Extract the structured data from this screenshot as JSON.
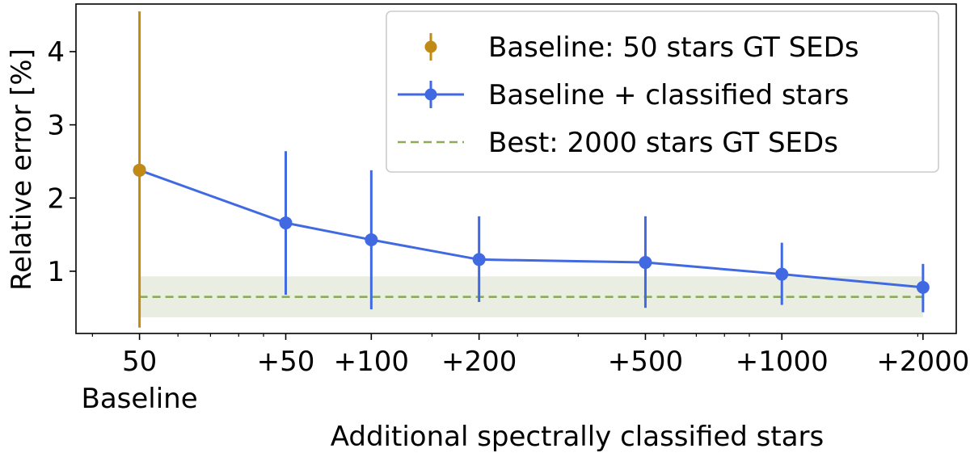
{
  "chart_data": {
    "type": "line",
    "title": "",
    "xlabel": "Additional spectrally classified stars",
    "ylabel": "Relative error [%]",
    "x_scale": "log",
    "xlim": [
      37,
      2400
    ],
    "ylim": [
      0.15,
      4.65
    ],
    "x_ticks": [
      {
        "value": 50,
        "label": "50",
        "sublabel": "Baseline"
      },
      {
        "value": 100,
        "label": "+50"
      },
      {
        "value": 150,
        "label": "+100"
      },
      {
        "value": 250,
        "label": "+200"
      },
      {
        "value": 550,
        "label": "+500"
      },
      {
        "value": 1050,
        "label": "+1000"
      },
      {
        "value": 2050,
        "label": "+2000"
      }
    ],
    "y_ticks": [
      1,
      2,
      3,
      4
    ],
    "colors": {
      "baseline": "#c08a14",
      "classified": "#4169e1",
      "best": "#8cab5a",
      "best_band": "#eaeee2"
    },
    "legend": {
      "position": "upper-right",
      "entries": [
        {
          "label": "Baseline: 50 stars GT SEDs",
          "series": "baseline"
        },
        {
          "label": "Baseline + classified stars",
          "series": "classified"
        },
        {
          "label": "Best: 2000 stars GT SEDs",
          "series": "best"
        }
      ]
    },
    "series": [
      {
        "key": "baseline",
        "style": "errorbar-point",
        "points": [
          {
            "x": 50,
            "y": 2.38,
            "err_low": 0.23,
            "err_high": 4.55
          }
        ]
      },
      {
        "key": "classified",
        "style": "line-errorbar",
        "points": [
          {
            "x": 50,
            "y": 2.38,
            "err_low": 2.38,
            "err_high": 2.38
          },
          {
            "x": 100,
            "y": 1.66,
            "err_low": 0.68,
            "err_high": 2.64
          },
          {
            "x": 150,
            "y": 1.43,
            "err_low": 0.48,
            "err_high": 2.38
          },
          {
            "x": 250,
            "y": 1.16,
            "err_low": 0.58,
            "err_high": 1.75
          },
          {
            "x": 550,
            "y": 1.12,
            "err_low": 0.5,
            "err_high": 1.75
          },
          {
            "x": 1050,
            "y": 0.96,
            "err_low": 0.54,
            "err_high": 1.39
          },
          {
            "x": 2050,
            "y": 0.78,
            "err_low": 0.44,
            "err_high": 1.1
          }
        ]
      },
      {
        "key": "best",
        "style": "dashed-hline-band",
        "y": 0.65,
        "band_low": 0.37,
        "band_high": 0.93,
        "x_range": [
          50,
          2050
        ]
      }
    ]
  }
}
